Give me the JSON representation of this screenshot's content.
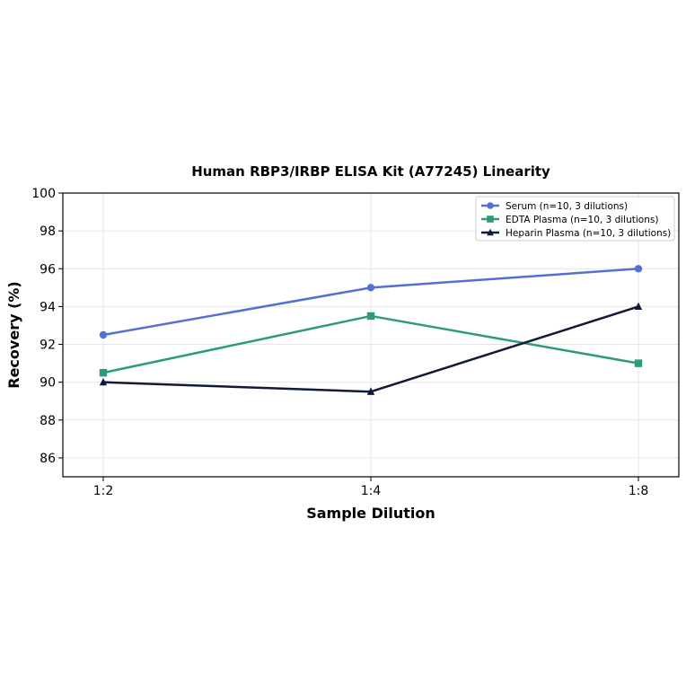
{
  "chart_data": {
    "type": "line",
    "title": "Human RBP3/IRBP ELISA Kit (A77245) Linearity",
    "xlabel": "Sample Dilution",
    "ylabel": "Recovery (%)",
    "categories": [
      "1:2",
      "1:4",
      "1:8"
    ],
    "ylim": [
      85,
      100
    ],
    "yticks": [
      86,
      88,
      90,
      92,
      94,
      96,
      98,
      100
    ],
    "grid": true,
    "legend_position": "top-right",
    "series": [
      {
        "name": "Serum (n=10, 3 dilutions)",
        "values": [
          92.5,
          95.0,
          96.0
        ],
        "color": "#5470d0",
        "marker": "circle"
      },
      {
        "name": "EDTA Plasma (n=10, 3 dilutions)",
        "values": [
          90.5,
          93.5,
          91.0
        ],
        "color": "#2e9b78",
        "marker": "square"
      },
      {
        "name": "Heparin Plasma (n=10, 3 dilutions)",
        "values": [
          90.0,
          89.5,
          94.0
        ],
        "color": "#121a3a",
        "marker": "triangle"
      }
    ]
  }
}
